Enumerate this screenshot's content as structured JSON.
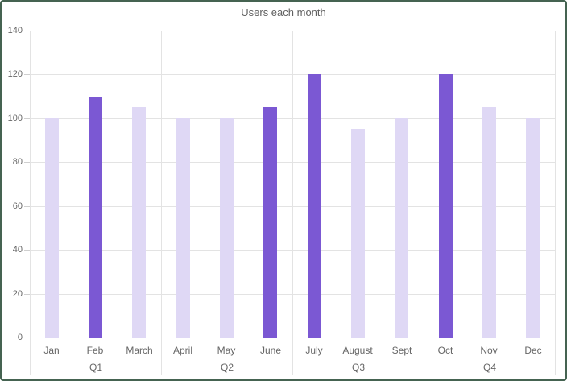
{
  "frame": {
    "border_color": "#456351",
    "background": "#ffffff"
  },
  "chart_data": {
    "type": "bar",
    "title": "Users each month",
    "categories": [
      "Jan",
      "Feb",
      "March",
      "April",
      "May",
      "June",
      "July",
      "August",
      "Sept",
      "Oct",
      "Nov",
      "Dec"
    ],
    "values": [
      100,
      110,
      105,
      100,
      100,
      105,
      120,
      95,
      100,
      120,
      105,
      100
    ],
    "highlighted_categories": [
      "Feb",
      "June",
      "July",
      "Oct"
    ],
    "group_labels": [
      "Q1",
      "Q2",
      "Q3",
      "Q4"
    ],
    "months_per_group": 3,
    "xlabel": "",
    "ylabel": "",
    "ylim": [
      0,
      140
    ],
    "yticks": [
      0,
      20,
      40,
      60,
      80,
      100,
      120,
      140
    ],
    "grid": true,
    "legend": "none",
    "colors": {
      "bar_default": "#DFD8F5",
      "bar_highlight": "#7B58D3",
      "gridline": "#E3E3E3",
      "axis_line": "#D8D8D8",
      "tick_mark": "#CFCFCF",
      "text": "#666666",
      "title_text": "#616161"
    }
  }
}
